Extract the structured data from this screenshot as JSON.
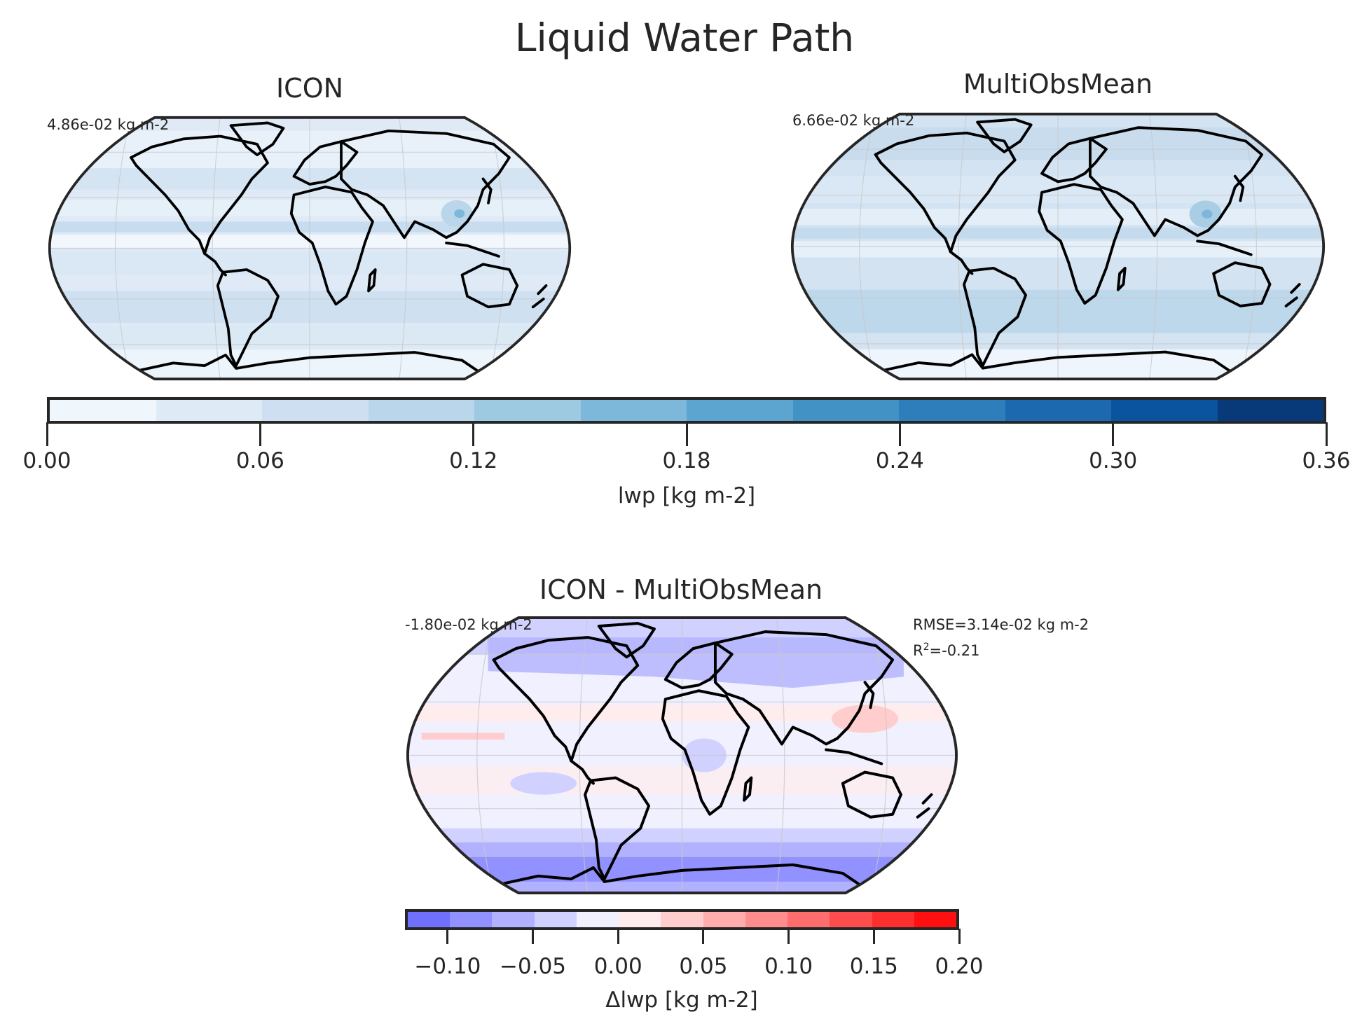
{
  "figure": {
    "suptitle": "Liquid Water Path"
  },
  "panels": {
    "icon": {
      "title": "ICON",
      "mean_annotation": "4.86e-02 kg m-2"
    },
    "obs": {
      "title": "MultiObsMean",
      "mean_annotation": "6.66e-02 kg m-2"
    },
    "diff": {
      "title": "ICON - MultiObsMean",
      "mean_annotation": "-1.80e-02 kg m-2",
      "rmse_annotation": "RMSE=3.14e-02 kg m-2",
      "r2_prefix": "R",
      "r2_sup": "2",
      "r2_value": "=-0.21"
    }
  },
  "colorbars": {
    "abs": {
      "label": "lwp [kg m-2]",
      "ticks": [
        "0.00",
        "0.06",
        "0.12",
        "0.18",
        "0.24",
        "0.30",
        "0.36"
      ],
      "colors": [
        "#eff6fc",
        "#deebf7",
        "#cddff1",
        "#b9d6ea",
        "#9ecae1",
        "#7db8da",
        "#5da5d1",
        "#4292c6",
        "#2e7ebc",
        "#1c69b0",
        "#0a539e",
        "#083a7a"
      ]
    },
    "diff": {
      "label": "Δlwp [kg m-2]",
      "ticks": [
        "−0.10",
        "−0.05",
        "0.00",
        "0.05",
        "0.10",
        "0.15",
        "0.20"
      ],
      "colors": [
        "#7070ff",
        "#9191ff",
        "#b1b1ff",
        "#d1d1ff",
        "#f0f0ff",
        "#ffeded",
        "#ffcdcd",
        "#ffadad",
        "#ff8d8d",
        "#ff6d6d",
        "#ff4d4d",
        "#ff2e2e",
        "#ff1010"
      ]
    }
  },
  "chart_data": [
    {
      "type": "heatmap",
      "title": "ICON",
      "subtitle": "Liquid Water Path",
      "projection": "Robinson (global map)",
      "annotation": "4.86e-02 kg m-2",
      "colorbar": {
        "label": "lwp [kg m-2]",
        "range": [
          0.0,
          0.36
        ],
        "ticks": [
          0.0,
          0.06,
          0.12,
          0.18,
          0.24,
          0.3,
          0.36
        ],
        "levels": 12,
        "cmap": "Blues"
      },
      "grid": true
    },
    {
      "type": "heatmap",
      "title": "MultiObsMean",
      "subtitle": "Liquid Water Path",
      "projection": "Robinson (global map)",
      "annotation": "6.66e-02 kg m-2",
      "colorbar": {
        "label": "lwp [kg m-2]",
        "range": [
          0.0,
          0.36
        ],
        "ticks": [
          0.0,
          0.06,
          0.12,
          0.18,
          0.24,
          0.3,
          0.36
        ],
        "levels": 12,
        "cmap": "Blues"
      },
      "grid": true
    },
    {
      "type": "heatmap",
      "title": "ICON - MultiObsMean",
      "projection": "Robinson (global map)",
      "annotation": "-1.80e-02 kg m-2",
      "stats": {
        "RMSE": "3.14e-02 kg m-2",
        "R2": -0.21
      },
      "colorbar": {
        "label": "Δlwp [kg m-2]",
        "range": [
          -0.125,
          0.2
        ],
        "ticks": [
          -0.1,
          -0.05,
          0.0,
          0.05,
          0.1,
          0.15,
          0.2
        ],
        "levels": 13,
        "cmap": "bwr"
      },
      "grid": true
    }
  ]
}
